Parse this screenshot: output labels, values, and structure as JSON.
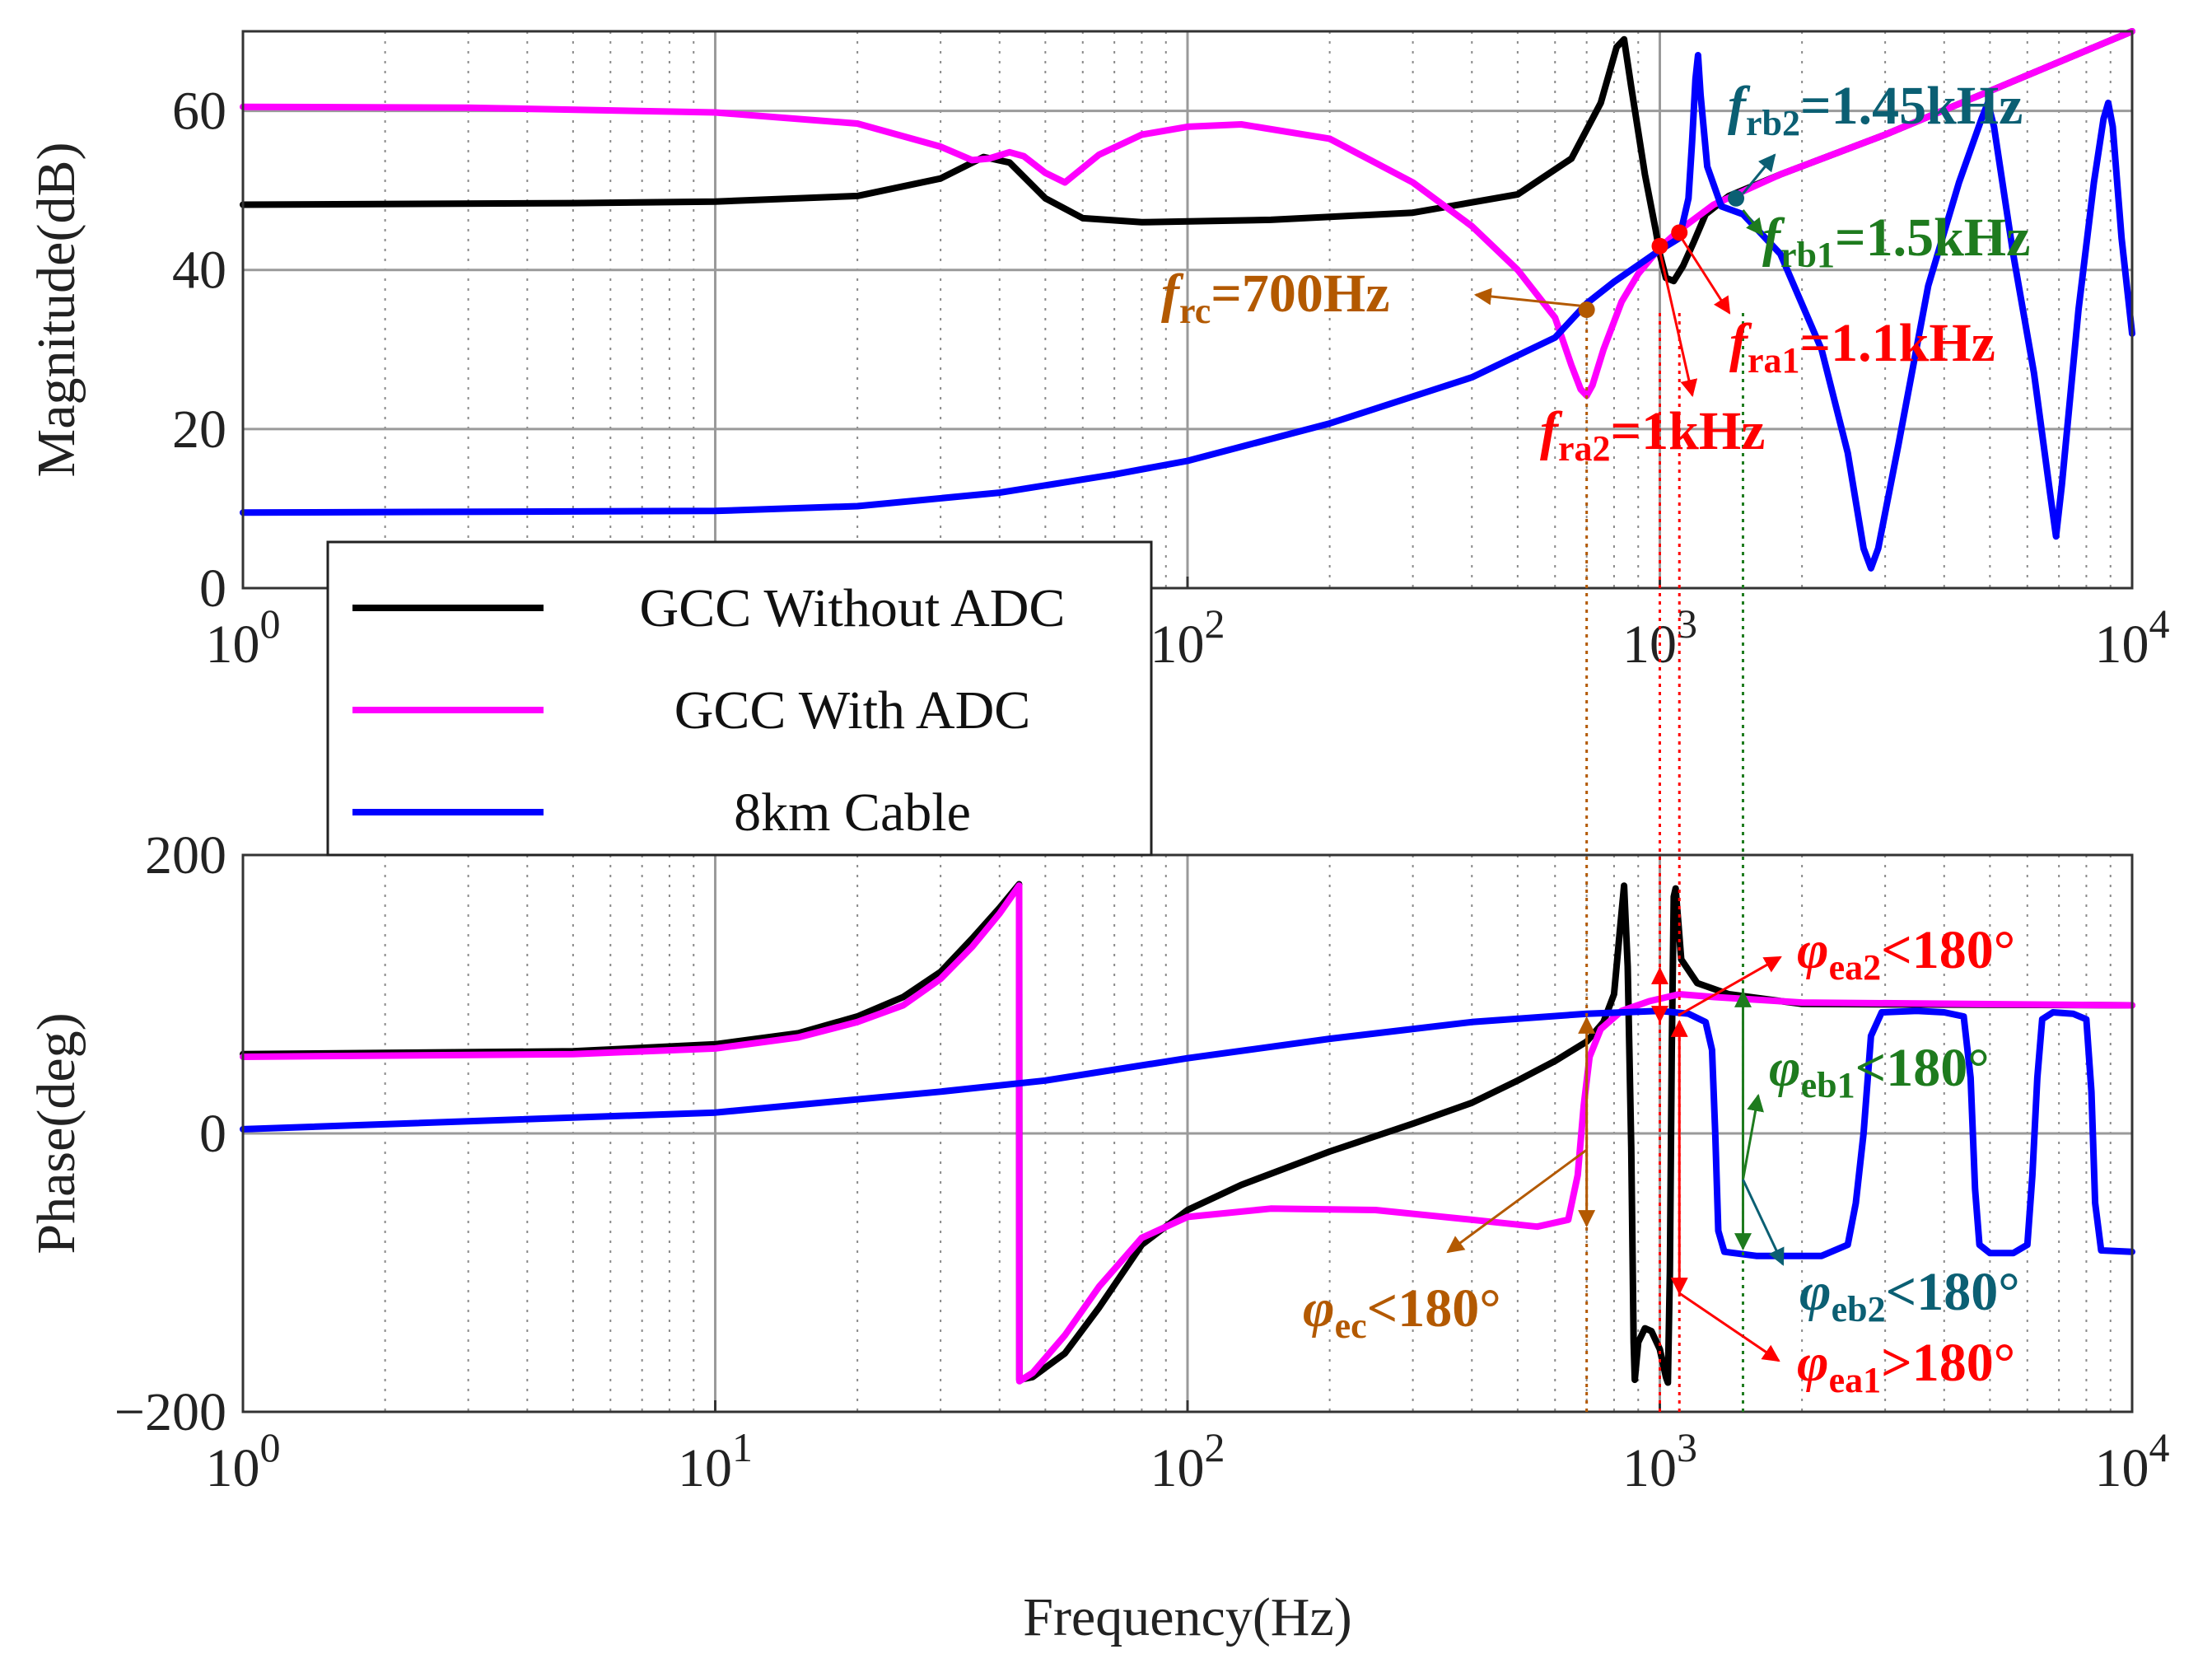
{
  "chart_data": [
    {
      "id": "magnitude",
      "type": "line",
      "xscale": "log",
      "xlim": [
        1,
        10000
      ],
      "ylim": [
        0,
        70
      ],
      "xlabel": "",
      "ylabel": "Magnitude(dB)",
      "yticks": [
        0,
        20,
        40,
        60
      ],
      "ytick_labels": [
        "0",
        "20",
        "40",
        "60"
      ],
      "xticks": [
        1,
        100,
        1000,
        10000
      ],
      "xtick_labels": [
        [
          "10",
          "0"
        ],
        [
          "10",
          "2"
        ],
        [
          "10",
          "3"
        ],
        [
          "10",
          "4"
        ]
      ],
      "grid": true,
      "series": [
        {
          "name": "GCC Without ADC",
          "color": "#000000",
          "points": [
            [
              1,
              48.2
            ],
            [
              5,
              48.4
            ],
            [
              10,
              48.6
            ],
            [
              20,
              49.3
            ],
            [
              30,
              51.5
            ],
            [
              37,
              54.2
            ],
            [
              42,
              53.5
            ],
            [
              50,
              49
            ],
            [
              60,
              46.5
            ],
            [
              80,
              46
            ],
            [
              150,
              46.3
            ],
            [
              300,
              47.2
            ],
            [
              500,
              49.5
            ],
            [
              650,
              54
            ],
            [
              750,
              61
            ],
            [
              810,
              68
            ],
            [
              840,
              69
            ],
            [
              870,
              63
            ],
            [
              930,
              52
            ],
            [
              980,
              45
            ],
            [
              1000,
              42
            ],
            [
              1030,
              39
            ],
            [
              1070,
              38.6
            ],
            [
              1120,
              40.5
            ],
            [
              1180,
              43.5
            ],
            [
              1250,
              47
            ],
            [
              1400,
              49.3
            ],
            [
              1800,
              52
            ],
            [
              3000,
              57
            ],
            [
              5000,
              62.5
            ],
            [
              10000,
              70
            ]
          ]
        },
        {
          "name": "GCC With ADC",
          "color": "#ff00ff",
          "points": [
            [
              1,
              60.5
            ],
            [
              3,
              60.4
            ],
            [
              10,
              59.8
            ],
            [
              20,
              58.4
            ],
            [
              30,
              55.5
            ],
            [
              35,
              53.8
            ],
            [
              38,
              54
            ],
            [
              42,
              54.8
            ],
            [
              45,
              54.3
            ],
            [
              50,
              52.2
            ],
            [
              55,
              51
            ],
            [
              65,
              54.5
            ],
            [
              80,
              57
            ],
            [
              100,
              58
            ],
            [
              130,
              58.3
            ],
            [
              200,
              56.5
            ],
            [
              300,
              51
            ],
            [
              400,
              45.5
            ],
            [
              500,
              40
            ],
            [
              600,
              34
            ],
            [
              650,
              28
            ],
            [
              680,
              25
            ],
            [
              700,
              24.2
            ],
            [
              720,
              25.5
            ],
            [
              760,
              30
            ],
            [
              830,
              36
            ],
            [
              900,
              39.5
            ],
            [
              1000,
              42.8
            ],
            [
              1100,
              45
            ],
            [
              1300,
              48.2
            ],
            [
              1800,
              52
            ],
            [
              3000,
              57
            ],
            [
              5000,
              62.5
            ],
            [
              10000,
              70
            ]
          ]
        },
        {
          "name": "8km Cable",
          "color": "#0000ff",
          "points": [
            [
              1,
              9.5
            ],
            [
              10,
              9.7
            ],
            [
              20,
              10.3
            ],
            [
              40,
              12
            ],
            [
              70,
              14.3
            ],
            [
              100,
              16
            ],
            [
              200,
              20.7
            ],
            [
              400,
              26.5
            ],
            [
              600,
              31.5
            ],
            [
              700,
              35.8
            ],
            [
              800,
              38.5
            ],
            [
              1000,
              42.5
            ],
            [
              1100,
              44
            ],
            [
              1150,
              49
            ],
            [
              1170,
              56
            ],
            [
              1190,
              64
            ],
            [
              1205,
              67
            ],
            [
              1220,
              62
            ],
            [
              1260,
              53
            ],
            [
              1350,
              48
            ],
            [
              1500,
              47
            ],
            [
              1800,
              42
            ],
            [
              2200,
              30
            ],
            [
              2500,
              17
            ],
            [
              2700,
              5
            ],
            [
              2800,
              2.5
            ],
            [
              2900,
              5
            ],
            [
              3200,
              18
            ],
            [
              3700,
              38
            ],
            [
              4300,
              51
            ],
            [
              4800,
              59
            ],
            [
              4950,
              61
            ],
            [
              5100,
              58
            ],
            [
              5600,
              42
            ],
            [
              6200,
              27
            ],
            [
              6700,
              12
            ],
            [
              6900,
              6.5
            ],
            [
              7100,
              13
            ],
            [
              7700,
              35
            ],
            [
              8300,
              51
            ],
            [
              8700,
              59
            ],
            [
              8900,
              61
            ],
            [
              9100,
              58
            ],
            [
              9500,
              44
            ],
            [
              10000,
              32
            ]
          ]
        }
      ]
    },
    {
      "id": "phase",
      "type": "line",
      "xscale": "log",
      "xlim": [
        1,
        10000
      ],
      "ylim": [
        -200,
        200
      ],
      "xlabel": "Frequency(Hz)",
      "ylabel": "Phase(deg)",
      "yticks": [
        -200,
        0,
        200
      ],
      "ytick_labels": [
        "−200",
        "0",
        "200"
      ],
      "xticks": [
        1,
        10,
        100,
        1000,
        10000
      ],
      "xtick_labels": [
        [
          "10",
          "0"
        ],
        [
          "10",
          "1"
        ],
        [
          "10",
          "2"
        ],
        [
          "10",
          "3"
        ],
        [
          "10",
          "4"
        ]
      ],
      "grid": true,
      "series": [
        {
          "name": "GCC Without ADC",
          "color": "#000000",
          "points": [
            [
              1,
              57
            ],
            [
              5,
              59
            ],
            [
              10,
              64
            ],
            [
              15,
              72
            ],
            [
              20,
              84
            ],
            [
              25,
              98
            ],
            [
              30,
              116
            ],
            [
              35,
              140
            ],
            [
              40,
              162
            ],
            [
              44,
              179
            ],
            [
              44.05,
              -177
            ],
            [
              47,
              -175
            ],
            [
              55,
              -158
            ],
            [
              65,
              -125
            ],
            [
              80,
              -80
            ],
            [
              100,
              -55
            ],
            [
              130,
              -37
            ],
            [
              200,
              -13
            ],
            [
              300,
              7
            ],
            [
              400,
              22
            ],
            [
              500,
              38
            ],
            [
              600,
              52
            ],
            [
              700,
              66
            ],
            [
              760,
              80
            ],
            [
              800,
              100
            ],
            [
              820,
              140
            ],
            [
              840,
              178
            ],
            [
              855,
              120
            ],
            [
              870,
              -10
            ],
            [
              880,
              -150
            ],
            [
              885,
              -177
            ],
            [
              900,
              -150
            ],
            [
              930,
              -140
            ],
            [
              960,
              -142
            ],
            [
              1000,
              -155
            ],
            [
              1030,
              -175
            ],
            [
              1040,
              -179
            ],
            [
              1050,
              -100
            ],
            [
              1060,
              60
            ],
            [
              1070,
              170
            ],
            [
              1080,
              176
            ],
            [
              1110,
              125
            ],
            [
              1200,
              108
            ],
            [
              1400,
              100
            ],
            [
              2000,
              93
            ],
            [
              10000,
              92
            ]
          ]
        },
        {
          "name": "GCC With ADC",
          "color": "#ff00ff",
          "points": [
            [
              1,
              55
            ],
            [
              5,
              57
            ],
            [
              10,
              61
            ],
            [
              15,
              69
            ],
            [
              20,
              80
            ],
            [
              25,
              92
            ],
            [
              30,
              111
            ],
            [
              35,
              134
            ],
            [
              40,
              158
            ],
            [
              44,
              178
            ],
            [
              44.05,
              -178
            ],
            [
              47,
              -172
            ],
            [
              55,
              -145
            ],
            [
              65,
              -110
            ],
            [
              80,
              -75
            ],
            [
              100,
              -60
            ],
            [
              150,
              -54
            ],
            [
              250,
              -55
            ],
            [
              400,
              -62
            ],
            [
              550,
              -67
            ],
            [
              640,
              -62
            ],
            [
              670,
              -30
            ],
            [
              690,
              20
            ],
            [
              710,
              55
            ],
            [
              750,
              75
            ],
            [
              830,
              88
            ],
            [
              950,
              95
            ],
            [
              1100,
              100
            ],
            [
              1300,
              98
            ],
            [
              2000,
              94
            ],
            [
              10000,
              92
            ]
          ]
        },
        {
          "name": "8km Cable",
          "color": "#0000ff",
          "points": [
            [
              1,
              3
            ],
            [
              10,
              15
            ],
            [
              30,
              30
            ],
            [
              50,
              38
            ],
            [
              100,
              54
            ],
            [
              200,
              68
            ],
            [
              400,
              80
            ],
            [
              700,
              86
            ],
            [
              1000,
              88
            ],
            [
              1150,
              86
            ],
            [
              1250,
              80
            ],
            [
              1290,
              60
            ],
            [
              1310,
              0
            ],
            [
              1330,
              -70
            ],
            [
              1370,
              -85
            ],
            [
              1600,
              -88
            ],
            [
              2200,
              -88
            ],
            [
              2500,
              -80
            ],
            [
              2600,
              -50
            ],
            [
              2700,
              0
            ],
            [
              2800,
              70
            ],
            [
              2950,
              87
            ],
            [
              3500,
              88
            ],
            [
              4000,
              87
            ],
            [
              4400,
              84
            ],
            [
              4550,
              40
            ],
            [
              4650,
              -40
            ],
            [
              4750,
              -80
            ],
            [
              5000,
              -86
            ],
            [
              5600,
              -86
            ],
            [
              6000,
              -80
            ],
            [
              6150,
              -30
            ],
            [
              6300,
              40
            ],
            [
              6450,
              82
            ],
            [
              6800,
              87
            ],
            [
              7500,
              86
            ],
            [
              8000,
              82
            ],
            [
              8200,
              30
            ],
            [
              8350,
              -50
            ],
            [
              8600,
              -84
            ],
            [
              10000,
              -85
            ]
          ]
        }
      ]
    }
  ],
  "legend": {
    "placement": "center-left",
    "entries": [
      {
        "label": "GCC Without ADC",
        "color": "#000000"
      },
      {
        "label": "GCC With ADC",
        "color": "#ff00ff"
      },
      {
        "label": "8km Cable",
        "color": "#0000ff"
      }
    ]
  },
  "annotations": {
    "frc": {
      "base": "f",
      "sub": "rc",
      "text": "=700Hz",
      "color": "#b35900",
      "freq_hz": 700,
      "mag_db": 35
    },
    "fra1": {
      "base": "f",
      "sub": "ra1",
      "text": "=1.1kHz",
      "color": "#ff0000",
      "freq_hz": 1100,
      "mag_db": 44.7
    },
    "fra2": {
      "base": "f",
      "sub": "ra2",
      "text": "=1kHz",
      "color": "#ff0000",
      "freq_hz": 1000,
      "mag_db": 43
    },
    "frb1": {
      "base": "f",
      "sub": "rb1",
      "text": "=1.5kHz",
      "color": "#1e7b1e",
      "freq_hz": 1500,
      "mag_db": 47.7
    },
    "frb2": {
      "base": "f",
      "sub": "rb2",
      "text": "=1.45kHz",
      "color": "#0b5f73",
      "freq_hz": 1450,
      "mag_db": 49
    },
    "phi_ea2": {
      "base": "φ",
      "sub": "ea2",
      "text": "<180°",
      "color": "#ff0000"
    },
    "phi_eb1": {
      "base": "φ",
      "sub": "eb1",
      "text": "<180°",
      "color": "#1e7b1e"
    },
    "phi_ec": {
      "base": "φ",
      "sub": "ec",
      "text": "<180°",
      "color": "#b35900"
    },
    "phi_eb2": {
      "base": "φ",
      "sub": "eb2",
      "text": "<180°",
      "color": "#0b5f73"
    },
    "phi_ea1": {
      "base": "φ",
      "sub": "ea1",
      "text": ">180°",
      "color": "#ff0000"
    }
  },
  "markers": [
    {
      "freq_hz": 700,
      "color": "#b35900"
    },
    {
      "freq_hz": 1000,
      "color": "#ff0000"
    },
    {
      "freq_hz": 1100,
      "color": "#ff0000"
    },
    {
      "freq_hz": 1500,
      "color": "#1e7b1e"
    }
  ]
}
